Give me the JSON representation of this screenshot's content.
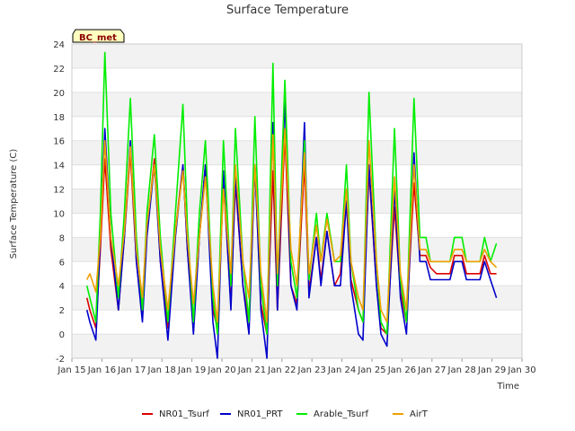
{
  "chart_data": {
    "type": "line",
    "title": "Surface Temperature",
    "xlabel": "Time",
    "ylabel": "Surface Temperature (C)",
    "badge": "BC_met",
    "x_domain_days": [
      15,
      30
    ],
    "x_tick_labels": [
      "Jan 15",
      "Jan 16",
      "Jan 17",
      "Jan 18",
      "Jan 19",
      "Jan 20",
      "Jan 21",
      "Jan 22",
      "Jan 23",
      "Jan 24",
      "Jan 25",
      "Jan 26",
      "Jan 27",
      "Jan 28",
      "Jan 29",
      "Jan 30"
    ],
    "ylim": [
      -2,
      24
    ],
    "y_ticks": [
      -2,
      0,
      2,
      4,
      6,
      8,
      10,
      12,
      14,
      16,
      18,
      20,
      22,
      24
    ],
    "grid": "horizontal bands",
    "legend_position": "bottom",
    "series": [
      {
        "name": "NR01_Tsurf",
        "color": "#dd0000",
        "x": [
          15.5,
          15.6,
          15.8,
          15.95,
          16.1,
          16.3,
          16.55,
          16.75,
          16.95,
          17.15,
          17.35,
          17.5,
          17.75,
          17.95,
          18.2,
          18.45,
          18.7,
          18.85,
          19.05,
          19.25,
          19.45,
          19.7,
          19.85,
          20.05,
          20.3,
          20.45,
          20.7,
          20.9,
          21.1,
          21.3,
          21.5,
          21.7,
          21.85,
          22.1,
          22.3,
          22.5,
          22.75,
          22.9,
          23.15,
          23.3,
          23.5,
          23.75,
          23.95,
          24.15,
          24.3,
          24.55,
          24.7,
          24.9,
          25.15,
          25.3,
          25.5,
          25.75,
          25.95,
          26.15,
          26.4,
          26.6,
          26.8,
          26.95,
          27.15,
          27.4,
          27.6,
          27.75,
          28.0,
          28.15,
          28.4,
          28.6,
          28.75,
          28.95,
          29.15
        ],
        "y": [
          3.0,
          2.0,
          0.5,
          7.0,
          14.5,
          7.0,
          2.0,
          8.0,
          15.0,
          6.0,
          1.5,
          8.5,
          14.5,
          6.0,
          0.5,
          8.5,
          14.0,
          7.0,
          0.5,
          8.0,
          14.0,
          2.0,
          0.5,
          12.5,
          2.5,
          12.5,
          4.0,
          1.0,
          14.0,
          2.5,
          0.0,
          13.5,
          2.0,
          16.5,
          4.0,
          2.5,
          14.0,
          3.5,
          8.0,
          4.5,
          8.5,
          4.0,
          5.0,
          11.0,
          4.5,
          2.0,
          1.0,
          13.5,
          4.0,
          0.5,
          0.0,
          10.5,
          3.5,
          1.0,
          12.5,
          6.5,
          6.5,
          5.5,
          5.0,
          5.0,
          5.0,
          6.5,
          6.5,
          5.0,
          5.0,
          5.0,
          6.5,
          5.0,
          5.0
        ]
      },
      {
        "name": "NR01_PRT",
        "color": "#0000cc",
        "x": [
          15.5,
          15.6,
          15.8,
          15.95,
          16.1,
          16.3,
          16.55,
          16.75,
          16.95,
          17.15,
          17.35,
          17.5,
          17.75,
          17.95,
          18.2,
          18.45,
          18.7,
          18.85,
          19.05,
          19.25,
          19.45,
          19.7,
          19.85,
          20.05,
          20.3,
          20.45,
          20.7,
          20.9,
          21.1,
          21.3,
          21.5,
          21.7,
          21.85,
          22.1,
          22.3,
          22.5,
          22.75,
          22.9,
          23.15,
          23.3,
          23.5,
          23.75,
          23.95,
          24.15,
          24.3,
          24.55,
          24.7,
          24.9,
          25.15,
          25.3,
          25.5,
          25.75,
          25.95,
          26.15,
          26.4,
          26.6,
          26.8,
          26.95,
          27.15,
          27.4,
          27.6,
          27.75,
          28.0,
          28.15,
          28.4,
          28.6,
          28.75,
          28.95,
          29.15
        ],
        "y": [
          2.0,
          1.0,
          -0.5,
          8.0,
          17.0,
          8.0,
          2.0,
          8.0,
          16.0,
          6.0,
          1.0,
          8.0,
          14.0,
          6.0,
          -0.5,
          8.0,
          14.0,
          7.0,
          0.0,
          8.0,
          14.0,
          1.0,
          -2.0,
          13.5,
          2.0,
          13.0,
          4.0,
          0.0,
          14.0,
          2.0,
          -2.0,
          17.5,
          2.0,
          19.5,
          4.0,
          2.0,
          17.5,
          3.0,
          8.0,
          4.0,
          8.5,
          4.0,
          4.0,
          11.0,
          4.0,
          0.0,
          -0.5,
          14.0,
          4.0,
          0.0,
          -1.0,
          12.0,
          3.0,
          0.0,
          15.0,
          6.0,
          6.0,
          4.5,
          4.5,
          4.5,
          4.5,
          6.0,
          6.0,
          4.5,
          4.5,
          4.5,
          6.0,
          4.5,
          3.0
        ]
      },
      {
        "name": "Arable_Tsurf",
        "color": "#00ee00",
        "x": [
          15.5,
          15.6,
          15.8,
          15.95,
          16.1,
          16.3,
          16.55,
          16.75,
          16.95,
          17.15,
          17.35,
          17.5,
          17.75,
          17.95,
          18.2,
          18.45,
          18.7,
          18.85,
          19.05,
          19.25,
          19.45,
          19.7,
          19.85,
          20.05,
          20.3,
          20.45,
          20.7,
          20.9,
          21.1,
          21.3,
          21.5,
          21.7,
          21.85,
          22.1,
          22.3,
          22.5,
          22.75,
          22.9,
          23.15,
          23.3,
          23.5,
          23.75,
          23.95,
          24.15,
          24.3,
          24.55,
          24.7,
          24.9,
          25.15,
          25.3,
          25.5,
          25.75,
          25.95,
          26.15,
          26.4,
          26.6,
          26.8,
          26.95,
          27.15,
          27.4,
          27.6,
          27.75,
          28.0,
          28.15,
          28.4,
          28.6,
          28.75,
          28.95,
          29.15
        ],
        "y": [
          4.0,
          3.0,
          1.0,
          10.0,
          23.3,
          10.0,
          3.0,
          10.0,
          19.5,
          8.0,
          2.0,
          10.0,
          16.5,
          8.0,
          1.0,
          10.0,
          19.0,
          9.0,
          1.0,
          10.0,
          16.0,
          3.0,
          0.0,
          16.0,
          4.0,
          17.0,
          6.0,
          1.0,
          18.0,
          4.0,
          0.0,
          22.4,
          4.0,
          21.0,
          6.0,
          3.0,
          16.0,
          4.5,
          10.0,
          6.0,
          10.0,
          6.0,
          6.0,
          14.0,
          6.0,
          2.0,
          1.0,
          20.0,
          6.0,
          1.0,
          0.0,
          17.0,
          4.5,
          1.0,
          19.5,
          8.0,
          8.0,
          6.0,
          6.0,
          6.0,
          6.0,
          8.0,
          8.0,
          6.0,
          6.0,
          6.0,
          8.0,
          6.0,
          7.5
        ]
      },
      {
        "name": "AirT",
        "color": "#f0a000",
        "x": [
          15.5,
          15.6,
          15.8,
          15.95,
          16.1,
          16.3,
          16.55,
          16.75,
          16.95,
          17.15,
          17.35,
          17.5,
          17.75,
          17.95,
          18.2,
          18.45,
          18.7,
          18.85,
          19.05,
          19.25,
          19.45,
          19.7,
          19.85,
          20.05,
          20.3,
          20.45,
          20.7,
          20.9,
          21.1,
          21.3,
          21.5,
          21.7,
          21.85,
          22.1,
          22.3,
          22.5,
          22.75,
          22.9,
          23.15,
          23.3,
          23.5,
          23.75,
          23.95,
          24.15,
          24.3,
          24.55,
          24.7,
          24.9,
          25.15,
          25.3,
          25.5,
          25.75,
          25.95,
          26.15,
          26.4,
          26.6,
          26.8,
          26.95,
          27.15,
          27.4,
          27.6,
          27.75,
          28.0,
          28.15,
          28.4,
          28.6,
          28.75,
          28.95,
          29.15
        ],
        "y": [
          4.5,
          5.0,
          3.5,
          8.0,
          16.0,
          8.0,
          4.0,
          8.5,
          15.5,
          7.0,
          3.0,
          9.0,
          14.0,
          7.0,
          2.0,
          8.5,
          13.5,
          8.0,
          2.5,
          8.0,
          13.0,
          4.0,
          1.0,
          12.0,
          5.0,
          14.0,
          6.0,
          3.0,
          14.0,
          5.0,
          1.0,
          16.5,
          5.0,
          17.0,
          7.0,
          4.0,
          15.0,
          5.0,
          9.0,
          6.0,
          9.5,
          6.0,
          6.5,
          12.0,
          6.0,
          3.0,
          2.0,
          16.0,
          6.0,
          2.0,
          1.0,
          13.0,
          5.0,
          2.0,
          14.0,
          7.0,
          7.0,
          6.0,
          6.0,
          6.0,
          6.0,
          7.0,
          7.0,
          6.0,
          6.0,
          6.0,
          7.0,
          6.0,
          5.5
        ]
      }
    ]
  }
}
